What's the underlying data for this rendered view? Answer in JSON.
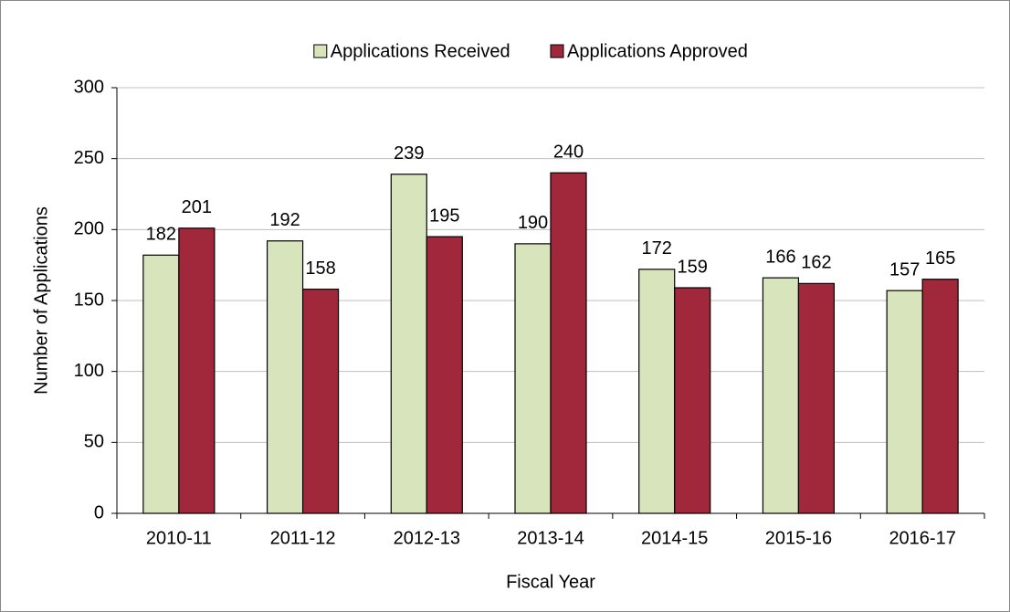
{
  "chart_data": {
    "type": "bar",
    "x_label": "Fiscal Year",
    "y_label": "Number of Applications",
    "categories": [
      "2010-11",
      "2011-12",
      "2012-13",
      "2013-14",
      "2014-15",
      "2015-16",
      "2016-17"
    ],
    "series": [
      {
        "name": "Applications Received",
        "color": "#d8e4bc",
        "values": [
          182,
          192,
          239,
          190,
          172,
          166,
          157
        ]
      },
      {
        "name": "Applications Approved",
        "color": "#a0283a",
        "values": [
          201,
          158,
          195,
          240,
          159,
          162,
          165
        ]
      }
    ],
    "ylim": [
      0,
      300
    ],
    "yticks": [
      0,
      50,
      100,
      150,
      200,
      250,
      300
    ],
    "grid": true,
    "legend": "top"
  }
}
